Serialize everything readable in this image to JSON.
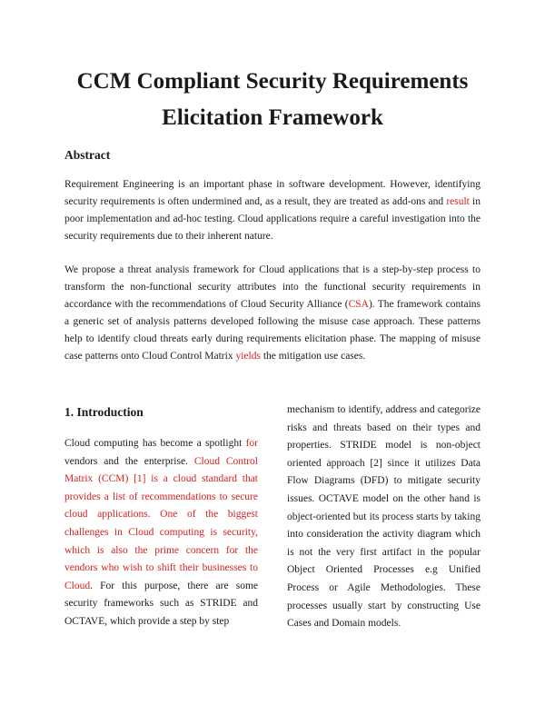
{
  "title_line1": "CCM Compliant Security Requirements",
  "title_line2": "Elicitation Framework",
  "abstract": {
    "heading": "Abstract",
    "p1": {
      "a": "Requirement Engineering is an important phase in software development. However, identifying security requirements is often undermined and, as a result, they are treated as add-ons and ",
      "red": "result",
      "b": " in poor implementation and ad-hoc testing. Cloud applications require a careful investigation into the security requirements due to their inherent nature."
    },
    "p2": {
      "a": "We propose a threat analysis framework for Cloud applications that is a step-by-step process to transform the non-functional security attributes into the functional security requirements in accordance with the recommendations of Cloud Security Alliance (",
      "red1": "CSA",
      "b": "). The framework contains a generic set of analysis patterns developed following the misuse case approach.  These patterns help to identify cloud threats early during requirements elicitation phase. The mapping of misuse case patterns onto Cloud Control Matrix ",
      "red2": "yields",
      "c": " the mitigation use cases."
    }
  },
  "intro": {
    "heading": "1. Introduction",
    "left": {
      "a": "Cloud computing has become a spotlight ",
      "red1": "for",
      "b": " vendors and the enterprise. ",
      "red2": "Cloud Control Matrix (CCM) [1] is a cloud standard that provides a list of recommendations to secure cloud applications. One of the biggest challenges in Cloud computing is security, which is also the prime concern for the vendors who wish to shift their businesses to Cloud",
      "c": ". For this purpose, there are some security frameworks such as STRIDE and OCTAVE, which provide a step by step"
    },
    "right": "mechanism to identify, address and categorize risks and threats based on their types and properties. STRIDE model is non-object oriented approach [2] since it utilizes Data Flow Diagrams (DFD) to mitigate security issues. OCTAVE model on the other hand is object-oriented but its process starts by taking into consideration the activity diagram which is not the very first artifact in the popular Object Oriented Processes e.g Unified Process or Agile Methodologies. These processes usually start by constructing Use Cases and Domain models."
  }
}
